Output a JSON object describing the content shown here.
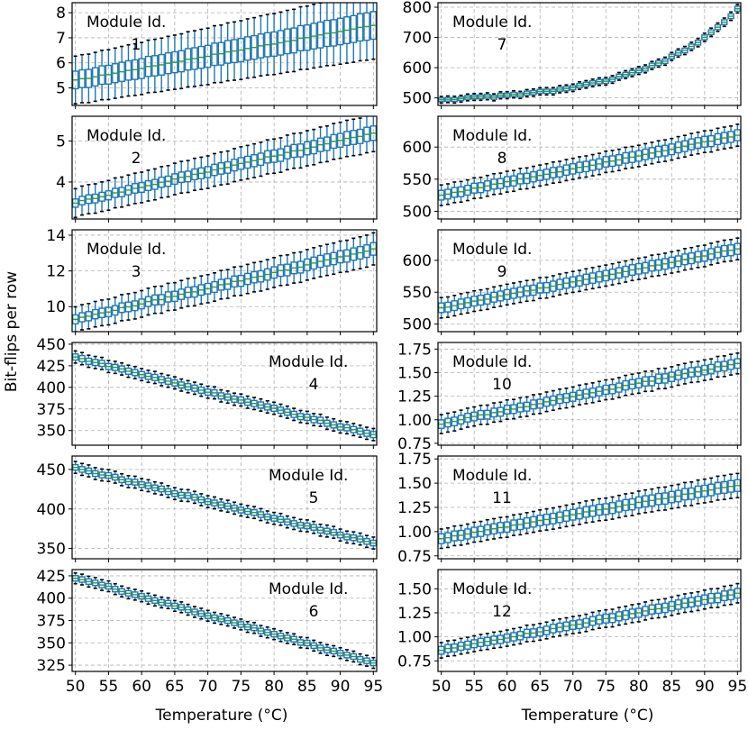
{
  "figure": {
    "ylabel": "Bit-flips per row",
    "xlabel": "Temperature (°C)",
    "module_prefix": "Module Id."
  },
  "chart_data": [
    {
      "type": "box",
      "module": "1",
      "col": 0,
      "row": 0,
      "label_pos": "top-left",
      "x_range": [
        49.5,
        95.5
      ],
      "x_ticks": [
        50,
        55,
        60,
        65,
        70,
        75,
        80,
        85,
        90,
        95
      ],
      "ylim": [
        4.3,
        8.4
      ],
      "y_ticks": [
        5,
        6,
        7,
        8
      ],
      "y_tick_labels": [
        "5",
        "6",
        "7",
        "8"
      ],
      "median_start": 5.3,
      "median_end": 7.5,
      "median_shape": "linear",
      "iqr_start": 0.7,
      "iqr_end": 1.1,
      "whisker_start": 1.9,
      "whisker_end": 2.7
    },
    {
      "type": "box",
      "module": "2",
      "col": 0,
      "row": 1,
      "label_pos": "top-left",
      "x_range": [
        49.5,
        95.5
      ],
      "x_ticks": [
        50,
        55,
        60,
        65,
        70,
        75,
        80,
        85,
        90,
        95
      ],
      "ylim": [
        3.1,
        5.6
      ],
      "y_ticks": [
        4,
        5
      ],
      "y_tick_labels": [
        "4",
        "5"
      ],
      "median_start": 3.5,
      "median_end": 5.2,
      "median_shape": "linear",
      "iqr_start": 0.2,
      "iqr_end": 0.35,
      "whisker_start": 0.7,
      "whisker_end": 0.9
    },
    {
      "type": "box",
      "module": "3",
      "col": 0,
      "row": 2,
      "label_pos": "top-left",
      "x_range": [
        49.5,
        95.5
      ],
      "x_ticks": [
        50,
        55,
        60,
        65,
        70,
        75,
        80,
        85,
        90,
        95
      ],
      "ylim": [
        8.6,
        14.3
      ],
      "y_ticks": [
        10,
        12,
        14
      ],
      "y_tick_labels": [
        "10",
        "12",
        "14"
      ],
      "median_start": 9.3,
      "median_end": 13.2,
      "median_shape": "linear",
      "iqr_start": 0.5,
      "iqr_end": 0.7,
      "whisker_start": 1.4,
      "whisker_end": 1.8
    },
    {
      "type": "box",
      "module": "4",
      "col": 0,
      "row": 3,
      "label_pos": "top-right",
      "x_range": [
        49.5,
        95.5
      ],
      "x_ticks": [
        50,
        55,
        60,
        65,
        70,
        75,
        80,
        85,
        90,
        95
      ],
      "ylim": [
        333,
        452
      ],
      "y_ticks": [
        350,
        375,
        400,
        425,
        450
      ],
      "y_tick_labels": [
        "350",
        "375",
        "400",
        "425",
        "450"
      ],
      "median_start": 435,
      "median_end": 345,
      "median_shape": "linear",
      "iqr_start": 7,
      "iqr_end": 7,
      "whisker_start": 14,
      "whisker_end": 14
    },
    {
      "type": "box",
      "module": "5",
      "col": 0,
      "row": 4,
      "label_pos": "top-right",
      "x_range": [
        49.5,
        95.5
      ],
      "x_ticks": [
        50,
        55,
        60,
        65,
        70,
        75,
        80,
        85,
        90,
        95
      ],
      "ylim": [
        337,
        467
      ],
      "y_ticks": [
        350,
        400,
        450
      ],
      "y_tick_labels": [
        "350",
        "400",
        "450"
      ],
      "median_start": 452,
      "median_end": 357,
      "median_shape": "linear",
      "iqr_start": 7,
      "iqr_end": 7,
      "whisker_start": 15,
      "whisker_end": 15
    },
    {
      "type": "box",
      "module": "6",
      "col": 0,
      "row": 5,
      "label_pos": "top-right",
      "x_range": [
        49.5,
        95.5
      ],
      "x_ticks": [
        50,
        55,
        60,
        65,
        70,
        75,
        80,
        85,
        90,
        95
      ],
      "ylim": [
        318,
        432
      ],
      "y_ticks": [
        325,
        350,
        375,
        400,
        425
      ],
      "y_tick_labels": [
        "325",
        "350",
        "375",
        "400",
        "425"
      ],
      "median_start": 423,
      "median_end": 328,
      "median_shape": "linear",
      "iqr_start": 6,
      "iqr_end": 6,
      "whisker_start": 12,
      "whisker_end": 12
    },
    {
      "type": "box",
      "module": "7",
      "col": 1,
      "row": 0,
      "label_pos": "top-left",
      "x_range": [
        49.5,
        95.5
      ],
      "x_ticks": [
        50,
        55,
        60,
        65,
        70,
        75,
        80,
        85,
        90,
        95
      ],
      "ylim": [
        475,
        815
      ],
      "y_ticks": [
        500,
        600,
        700,
        800
      ],
      "y_tick_labels": [
        "500",
        "600",
        "700",
        "800"
      ],
      "median_start": 495,
      "median_end": 792,
      "median_shape": "curve",
      "iqr_start": 12,
      "iqr_end": 16,
      "whisker_start": 22,
      "whisker_end": 28
    },
    {
      "type": "box",
      "module": "8",
      "col": 1,
      "row": 1,
      "label_pos": "top-left",
      "x_range": [
        49.5,
        95.5
      ],
      "x_ticks": [
        50,
        55,
        60,
        65,
        70,
        75,
        80,
        85,
        90,
        95
      ],
      "ylim": [
        488,
        648
      ],
      "y_ticks": [
        500,
        550,
        600
      ],
      "y_tick_labels": [
        "500",
        "550",
        "600"
      ],
      "median_start": 525,
      "median_end": 618,
      "median_shape": "linear",
      "iqr_start": 15,
      "iqr_end": 17,
      "whisker_start": 32,
      "whisker_end": 34
    },
    {
      "type": "box",
      "module": "9",
      "col": 1,
      "row": 2,
      "label_pos": "top-left",
      "x_range": [
        49.5,
        95.5
      ],
      "x_ticks": [
        50,
        55,
        60,
        65,
        70,
        75,
        80,
        85,
        90,
        95
      ],
      "ylim": [
        488,
        648
      ],
      "y_ticks": [
        500,
        550,
        600
      ],
      "y_tick_labels": [
        "500",
        "550",
        "600"
      ],
      "median_start": 525,
      "median_end": 618,
      "median_shape": "linear",
      "iqr_start": 15,
      "iqr_end": 17,
      "whisker_start": 32,
      "whisker_end": 34
    },
    {
      "type": "box",
      "module": "10",
      "col": 1,
      "row": 3,
      "label_pos": "top-left",
      "x_range": [
        49.5,
        95.5
      ],
      "x_ticks": [
        50,
        55,
        60,
        65,
        70,
        75,
        80,
        85,
        90,
        95
      ],
      "ylim": [
        0.73,
        1.82
      ],
      "y_ticks": [
        0.75,
        1.0,
        1.25,
        1.5,
        1.75
      ],
      "y_tick_labels": [
        "0.75",
        "1.00",
        "1.25",
        "1.50",
        "1.75"
      ],
      "median_start": 0.96,
      "median_end": 1.6,
      "median_shape": "linear",
      "iqr_start": 0.09,
      "iqr_end": 0.1,
      "whisker_start": 0.2,
      "whisker_end": 0.22
    },
    {
      "type": "box",
      "module": "11",
      "col": 1,
      "row": 4,
      "label_pos": "top-left",
      "x_range": [
        49.5,
        95.5
      ],
      "x_ticks": [
        50,
        55,
        60,
        65,
        70,
        75,
        80,
        85,
        90,
        95
      ],
      "ylim": [
        0.72,
        1.78
      ],
      "y_ticks": [
        0.75,
        1.0,
        1.25,
        1.5,
        1.75
      ],
      "y_tick_labels": [
        "0.75",
        "1.00",
        "1.25",
        "1.50",
        "1.75"
      ],
      "median_start": 0.93,
      "median_end": 1.48,
      "median_shape": "linear",
      "iqr_start": 0.1,
      "iqr_end": 0.12,
      "whisker_start": 0.2,
      "whisker_end": 0.25
    },
    {
      "type": "box",
      "module": "12",
      "col": 1,
      "row": 5,
      "label_pos": "top-left",
      "x_range": [
        49.5,
        95.5
      ],
      "x_ticks": [
        50,
        55,
        60,
        65,
        70,
        75,
        80,
        85,
        90,
        95
      ],
      "ylim": [
        0.64,
        1.7
      ],
      "y_ticks": [
        0.75,
        1.0,
        1.25,
        1.5
      ],
      "y_tick_labels": [
        "0.75",
        "1.00",
        "1.25",
        "1.50"
      ],
      "median_start": 0.86,
      "median_end": 1.45,
      "median_shape": "linear",
      "iqr_start": 0.08,
      "iqr_end": 0.1,
      "whisker_start": 0.16,
      "whisker_end": 0.2
    }
  ]
}
